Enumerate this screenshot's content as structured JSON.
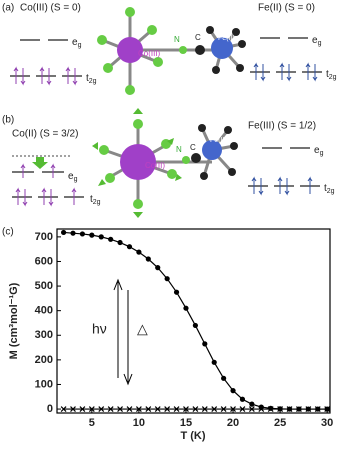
{
  "panel_a": {
    "label": "(a)",
    "co_state": "Co(III) (S = 0)",
    "fe_state": "Fe(II) (S = 0)",
    "co_atom": "Co(III)",
    "n_atom": "N",
    "c_atom": "C",
    "fe_atom": "Fe(II)",
    "co_eg": {
      "base": "e",
      "sub": "g"
    },
    "co_t2g": {
      "base": "t",
      "sub": "2g"
    },
    "fe_eg": {
      "base": "e",
      "sub": "g"
    },
    "fe_t2g": {
      "base": "t",
      "sub": "2g"
    }
  },
  "panel_b": {
    "label": "(b)",
    "co_state": "Co(II) (S = 3/2)",
    "fe_state": "Fe(III) (S = 1/2)",
    "co_atom": "Co(II)",
    "n_atom": "N",
    "c_atom": "C",
    "fe_atom": "Fe(III)",
    "co_eg": {
      "base": "e",
      "sub": "g"
    },
    "co_t2g": {
      "base": "t",
      "sub": "2g"
    },
    "fe_eg": {
      "base": "e",
      "sub": "g"
    },
    "fe_t2g": {
      "base": "t",
      "sub": "2g"
    }
  },
  "chart_data": {
    "type": "scatter",
    "panel_label": "(c)",
    "x_label": "T (K)",
    "y_label": "M (cm³mol⁻¹G)",
    "annotations": [
      "hν",
      "△"
    ],
    "x": [
      2,
      3,
      4,
      5,
      6,
      7,
      8,
      9,
      10,
      11,
      12,
      13,
      14,
      15,
      16,
      17,
      18,
      19,
      20,
      21,
      22,
      23,
      24,
      25,
      26,
      27,
      28,
      29,
      30
    ],
    "series": [
      {
        "marker": "circle",
        "line": true,
        "color": "#000",
        "values": [
          718,
          715,
          712,
          707,
          700,
          690,
          677,
          660,
          638,
          610,
          575,
          530,
          475,
          410,
          340,
          265,
          190,
          125,
          75,
          40,
          20,
          8,
          3,
          1,
          0,
          0,
          0,
          0,
          0
        ]
      },
      {
        "marker": "cross",
        "line": true,
        "color": "#000",
        "values": [
          0,
          0,
          0,
          0,
          0,
          0,
          0,
          0,
          0,
          0,
          0,
          0,
          0,
          0,
          0,
          0,
          0,
          0,
          0,
          0,
          0,
          0,
          0,
          0,
          0,
          0,
          0,
          0,
          0
        ]
      }
    ],
    "xlim": [
      1.3,
      30.3
    ],
    "ylim": [
      -16,
      732
    ],
    "xticks": [
      5,
      10,
      15,
      20,
      25,
      30
    ],
    "yticks": [
      0,
      100,
      200,
      300,
      400,
      500,
      600,
      700
    ]
  }
}
